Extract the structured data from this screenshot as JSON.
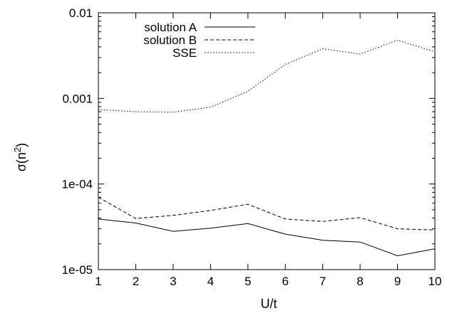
{
  "chart_data": {
    "type": "line",
    "xlabel": "U/t",
    "ylabel": "σ(n²)",
    "yscale": "log",
    "xlim": [
      1,
      10
    ],
    "ylim": [
      1e-05,
      0.01
    ],
    "grid": false,
    "legend_position": "top-left",
    "x": [
      1,
      2,
      3,
      4,
      5,
      6,
      7,
      8,
      9,
      10
    ],
    "x_tick_labels": [
      "1",
      "2",
      "3",
      "4",
      "5",
      "6",
      "7",
      "8",
      "9",
      "10"
    ],
    "y_ticks": [
      1e-05,
      0.0001,
      0.001,
      0.01
    ],
    "y_tick_labels": [
      "1e-05",
      "1e-04",
      "0.001",
      "0.01"
    ],
    "series": [
      {
        "name": "solution A",
        "dash": "solid",
        "color": "#000000",
        "values": [
          3.9e-05,
          3.5e-05,
          2.8e-05,
          3.05e-05,
          3.45e-05,
          2.6e-05,
          2.2e-05,
          2.1e-05,
          1.45e-05,
          1.75e-05
        ]
      },
      {
        "name": "solution B",
        "dash": "dashed",
        "color": "#000000",
        "values": [
          7e-05,
          3.95e-05,
          4.3e-05,
          4.9e-05,
          5.8e-05,
          3.9e-05,
          3.65e-05,
          4.05e-05,
          3e-05,
          2.9e-05
        ]
      },
      {
        "name": "SSE",
        "dash": "dotted",
        "color": "#000000",
        "values": [
          0.00074,
          0.0007,
          0.00069,
          0.00079,
          0.00121,
          0.0025,
          0.0038,
          0.0033,
          0.0048,
          0.0035
        ]
      }
    ]
  }
}
